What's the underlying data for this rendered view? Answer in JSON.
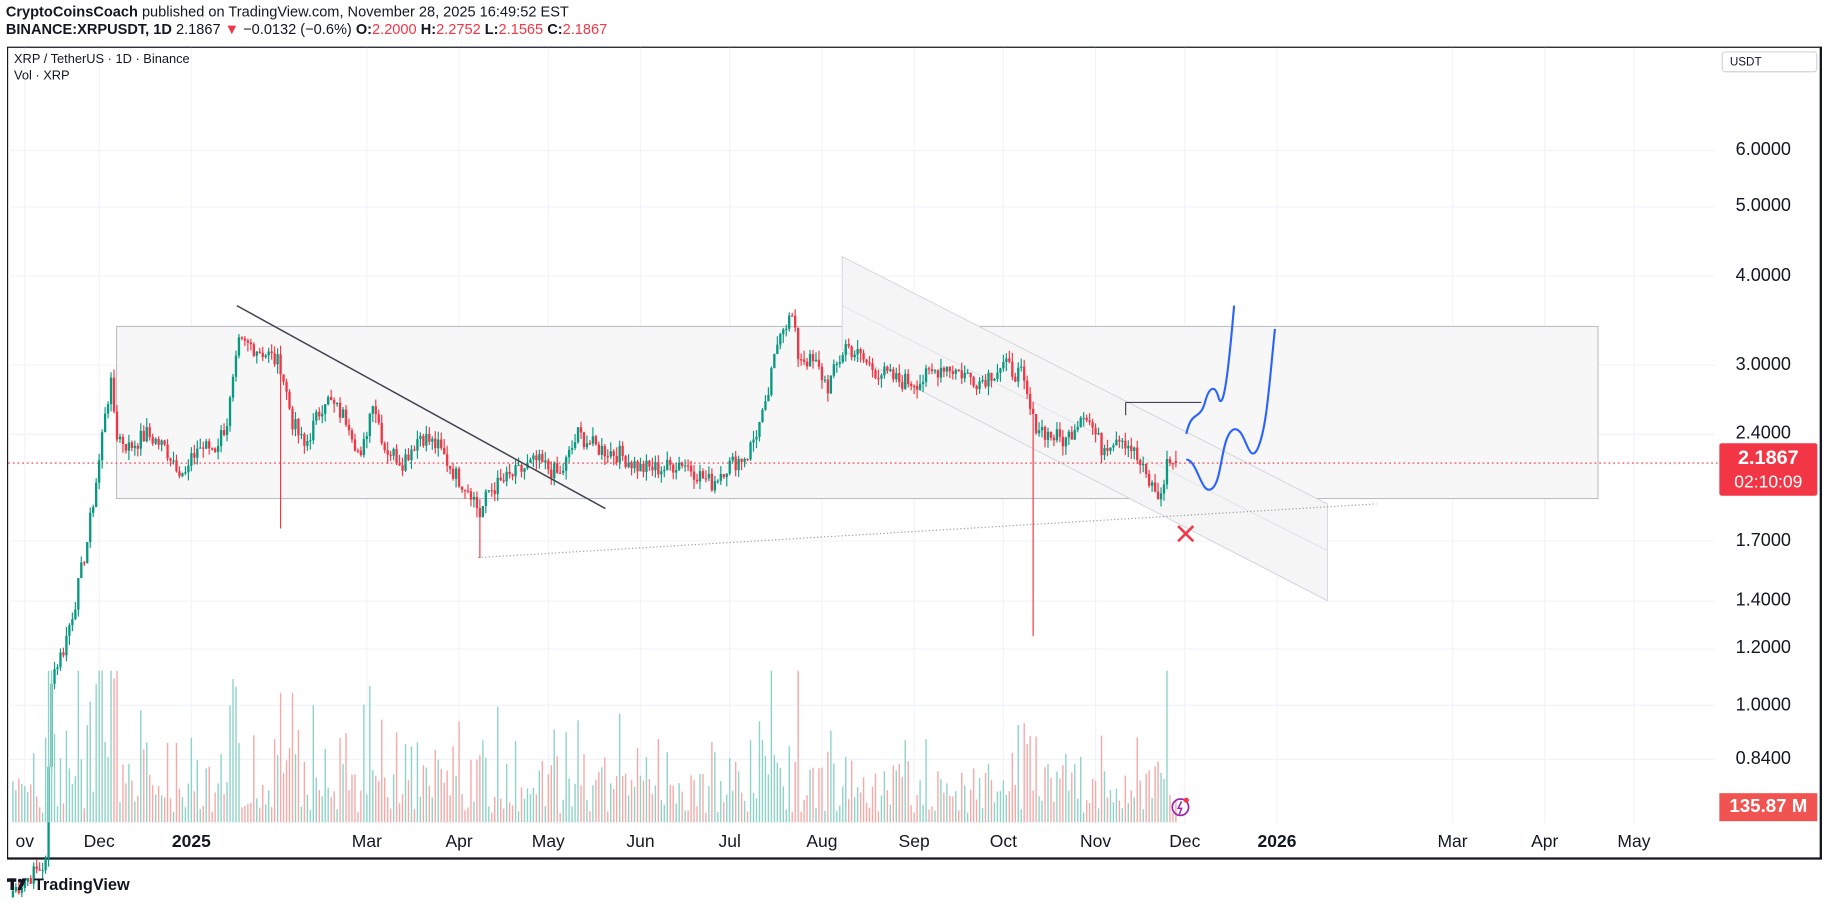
{
  "header": {
    "publisher": "CryptoCoinsCoach",
    "published": "published on TradingView.com, November 28, 2025 16:49:52 EST",
    "symbol": "BINANCE:XRPUSDT, 1D",
    "last": "2.1867",
    "arrow": "▼",
    "change": "−0.0132 (−0.6%)",
    "o_label": "O:",
    "o": "2.2000",
    "h_label": "H:",
    "h": "2.2752",
    "l_label": "L:",
    "l": "2.1565",
    "c_label": "C:",
    "c": "2.1867"
  },
  "legend": {
    "title": "XRP / TetherUS · 1D · Binance",
    "volume": "Vol · XRP"
  },
  "currency": "USDT",
  "price_tag": {
    "price": "2.1867",
    "countdown": "02:10:09"
  },
  "volume_tag": "135.87 M",
  "brand": "TradingView",
  "colors": {
    "up": "#089981",
    "down": "#f23645",
    "drawing": "#2962ff"
  },
  "chart_data": {
    "type": "candlestick",
    "title": "XRP / TetherUS · 1D · Binance",
    "scale": "log",
    "yticks": [
      6.0,
      5.0,
      4.0,
      3.0,
      2.4,
      1.7,
      1.4,
      1.2,
      1.0,
      0.84
    ],
    "ytick_labels": [
      "6.0000",
      "5.0000",
      "4.0000",
      "3.0000",
      "2.4000",
      "1.7000",
      "1.4000",
      "1.2000",
      "1.0000",
      "0.8400"
    ],
    "xtick_labels": [
      {
        "label": "ov",
        "day": 5
      },
      {
        "label": "Dec",
        "day": 30
      },
      {
        "label": "2025",
        "day": 61,
        "bold": true
      },
      {
        "label": "Mar",
        "day": 120
      },
      {
        "label": "Apr",
        "day": 151
      },
      {
        "label": "May",
        "day": 181
      },
      {
        "label": "Jun",
        "day": 212
      },
      {
        "label": "Jul",
        "day": 242
      },
      {
        "label": "Aug",
        "day": 273
      },
      {
        "label": "Sep",
        "day": 304
      },
      {
        "label": "Oct",
        "day": 334
      },
      {
        "label": "Nov",
        "day": 365
      },
      {
        "label": "Dec",
        "day": 395
      },
      {
        "label": "2026",
        "day": 426,
        "bold": true
      },
      {
        "label": "Mar",
        "day": 485
      },
      {
        "label": "Apr",
        "day": 516
      },
      {
        "label": "May",
        "day": 546
      }
    ],
    "x_unit": "days since 2024-11-01",
    "close_path": [
      [
        1,
        0.55
      ],
      [
        12,
        0.6
      ],
      [
        14,
        1.1
      ],
      [
        18,
        1.2
      ],
      [
        22,
        1.4
      ],
      [
        26,
        1.7
      ],
      [
        30,
        2.2
      ],
      [
        32,
        2.6
      ],
      [
        34,
        2.8
      ],
      [
        36,
        2.4
      ],
      [
        40,
        2.3
      ],
      [
        46,
        2.4
      ],
      [
        52,
        2.3
      ],
      [
        59,
        2.1
      ],
      [
        63,
        2.3
      ],
      [
        69,
        2.3
      ],
      [
        73,
        2.5
      ],
      [
        77,
        3.2
      ],
      [
        81,
        3.2
      ],
      [
        87,
        3.1
      ],
      [
        91,
        3.0
      ],
      [
        95,
        2.5
      ],
      [
        99,
        2.3
      ],
      [
        106,
        2.7
      ],
      [
        114,
        2.5
      ],
      [
        118,
        2.2
      ],
      [
        122,
        2.7
      ],
      [
        126,
        2.3
      ],
      [
        132,
        2.2
      ],
      [
        138,
        2.4
      ],
      [
        144,
        2.3
      ],
      [
        150,
        2.1
      ],
      [
        155,
        2.0
      ],
      [
        158,
        1.85
      ],
      [
        161,
        2.0
      ],
      [
        169,
        2.1
      ],
      [
        177,
        2.2
      ],
      [
        185,
        2.1
      ],
      [
        191,
        2.4
      ],
      [
        197,
        2.3
      ],
      [
        205,
        2.25
      ],
      [
        212,
        2.15
      ],
      [
        220,
        2.15
      ],
      [
        226,
        2.2
      ],
      [
        232,
        2.1
      ],
      [
        236,
        2.05
      ],
      [
        240,
        2.15
      ],
      [
        248,
        2.25
      ],
      [
        254,
        2.6
      ],
      [
        259,
        3.4
      ],
      [
        263,
        3.5
      ],
      [
        265,
        3.1
      ],
      [
        271,
        3.0
      ],
      [
        275,
        2.8
      ],
      [
        281,
        3.2
      ],
      [
        285,
        3.1
      ],
      [
        291,
        2.95
      ],
      [
        299,
        2.85
      ],
      [
        306,
        2.85
      ],
      [
        314,
        3.0
      ],
      [
        318,
        2.95
      ],
      [
        326,
        2.85
      ],
      [
        334,
        3.0
      ],
      [
        340,
        2.9
      ],
      [
        344,
        2.5
      ],
      [
        349,
        2.4
      ],
      [
        355,
        2.35
      ],
      [
        361,
        2.6
      ],
      [
        367,
        2.3
      ],
      [
        373,
        2.4
      ],
      [
        377,
        2.3
      ],
      [
        383,
        2.05
      ],
      [
        387,
        1.95
      ],
      [
        389,
        2.2
      ],
      [
        392,
        2.1867
      ]
    ],
    "extreme_lows": [
      [
        158,
        1.61
      ],
      [
        344,
        1.25
      ],
      [
        91,
        1.77
      ]
    ],
    "last": {
      "open": 2.2,
      "high": 2.2752,
      "low": 2.1565,
      "close": 2.1867,
      "change": -0.0132,
      "change_pct": -0.6
    },
    "last_volume": "135.87 M",
    "annotations": {
      "range_box": [
        1.95,
        3.4
      ],
      "trendline": "descending from Jan high to Apr-May",
      "support_dotted": "rising from Apr low",
      "channel": "descending channel Jul–Dec",
      "projection": "blue bullish projection paths",
      "invalidation": "red X below channel"
    }
  }
}
